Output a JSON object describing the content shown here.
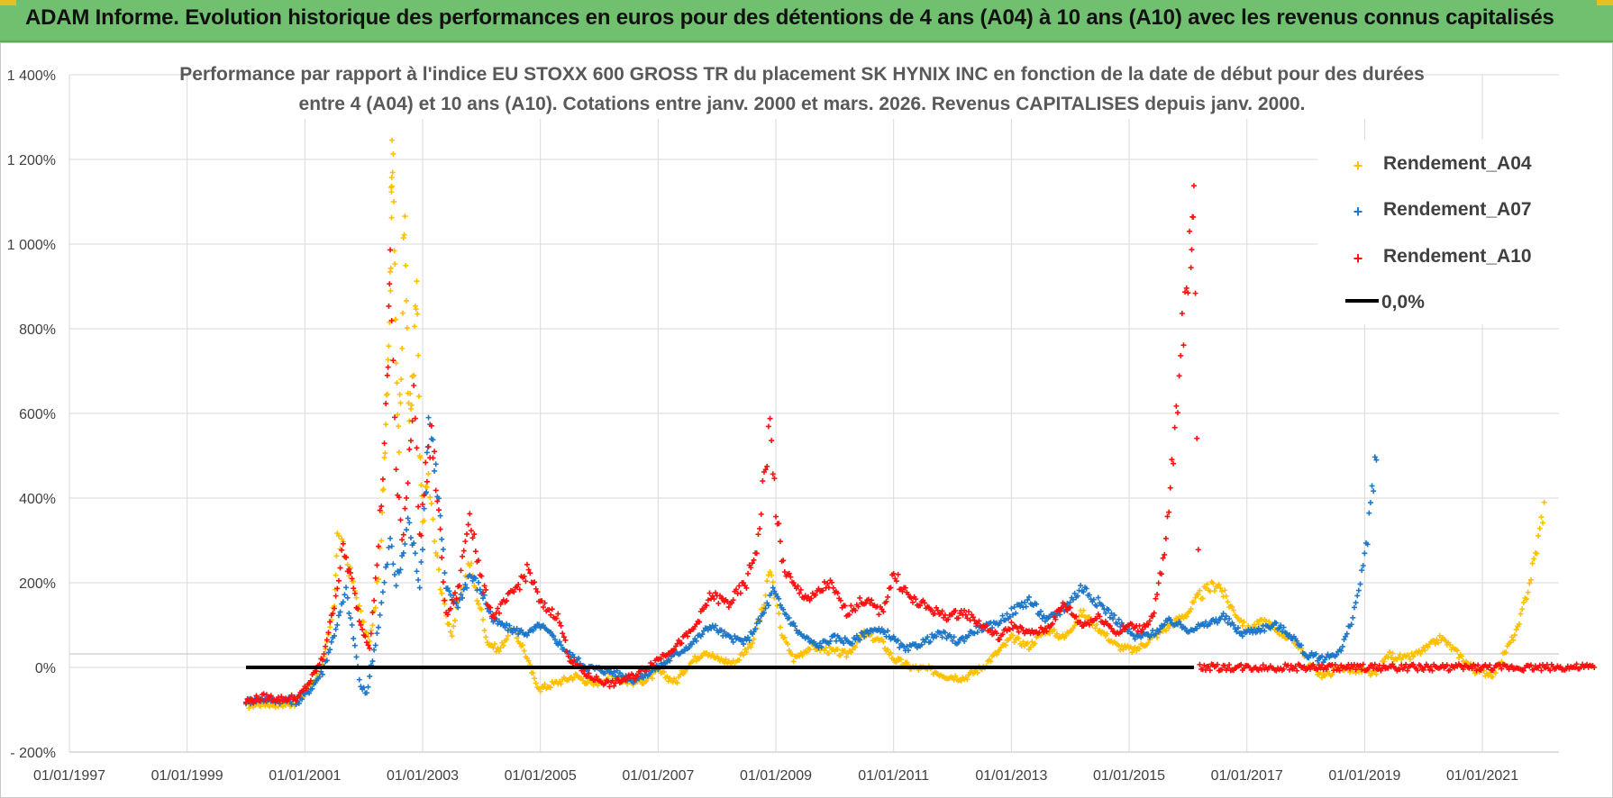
{
  "header": {
    "title": "ADAM Informe. Evolution historique des performances en euros pour des détentions de 4 ans (A04) à 10 ans (A10) avec les revenus connus capitalisés"
  },
  "chart_data": {
    "type": "scatter",
    "title_line1": "Performance par rapport à l'indice EU STOXX 600 GROSS TR  du placement SK HYNIX INC en fonction de la date de début pour des durées",
    "title_line2": "entre 4 (A04) et 10 ans (A10). Cotations entre janv. 2000 et mars. 2026. Revenus CAPITALISES depuis janv. 2000.",
    "xlim": [
      1997.0,
      2023.0
    ],
    "ylim": [
      -200,
      1400
    ],
    "x_ticks": [
      "01/01/1997",
      "01/01/1999",
      "01/01/2001",
      "01/01/2003",
      "01/01/2005",
      "01/01/2007",
      "01/01/2009",
      "01/01/2011",
      "01/01/2013",
      "01/01/2015",
      "01/01/2017",
      "01/01/2019",
      "01/01/2021"
    ],
    "y_ticks": [
      "- 200%",
      "0%",
      "200%",
      "400%",
      "600%",
      "800%",
      "1 000%",
      "1 200%",
      "1 400%"
    ],
    "grid": true,
    "legend_position": "top-right",
    "series": [
      {
        "name": "Rendement_A04",
        "color": "#ffc000",
        "points": [
          [
            2000.0,
            -90
          ],
          [
            2000.3,
            -85
          ],
          [
            2000.6,
            -88
          ],
          [
            2000.9,
            -82
          ],
          [
            2001.1,
            -40
          ],
          [
            2001.3,
            0
          ],
          [
            2001.5,
            150
          ],
          [
            2001.55,
            310
          ],
          [
            2001.7,
            260
          ],
          [
            2001.85,
            180
          ],
          [
            2002.0,
            100
          ],
          [
            2002.1,
            60
          ],
          [
            2002.2,
            150
          ],
          [
            2002.3,
            300
          ],
          [
            2002.35,
            500
          ],
          [
            2002.4,
            700
          ],
          [
            2002.45,
            900
          ],
          [
            2002.47,
            1110
          ],
          [
            2002.48,
            1260
          ],
          [
            2002.52,
            1000
          ],
          [
            2002.55,
            700
          ],
          [
            2002.6,
            550
          ],
          [
            2002.65,
            800
          ],
          [
            2002.7,
            1085
          ],
          [
            2002.75,
            650
          ],
          [
            2002.8,
            600
          ],
          [
            2002.85,
            700
          ],
          [
            2002.9,
            920
          ],
          [
            2002.95,
            500
          ],
          [
            2003.0,
            350
          ],
          [
            2003.1,
            450
          ],
          [
            2003.2,
            300
          ],
          [
            2003.3,
            200
          ],
          [
            2003.4,
            120
          ],
          [
            2003.5,
            80
          ],
          [
            2003.6,
            150
          ],
          [
            2003.7,
            200
          ],
          [
            2003.8,
            250
          ],
          [
            2003.9,
            180
          ],
          [
            2004.0,
            130
          ],
          [
            2004.1,
            60
          ],
          [
            2004.3,
            40
          ],
          [
            2004.5,
            90
          ],
          [
            2004.7,
            50
          ],
          [
            2004.9,
            -30
          ],
          [
            2005.0,
            -50
          ],
          [
            2005.3,
            -35
          ],
          [
            2005.6,
            -20
          ],
          [
            2005.9,
            -40
          ],
          [
            2006.2,
            -20
          ],
          [
            2006.5,
            -35
          ],
          [
            2006.8,
            -30
          ],
          [
            2007.0,
            -10
          ],
          [
            2007.3,
            -35
          ],
          [
            2007.5,
            5
          ],
          [
            2007.8,
            40
          ],
          [
            2008.0,
            20
          ],
          [
            2008.3,
            10
          ],
          [
            2008.6,
            60
          ],
          [
            2008.8,
            150
          ],
          [
            2008.9,
            230
          ],
          [
            2009.0,
            160
          ],
          [
            2009.1,
            80
          ],
          [
            2009.3,
            20
          ],
          [
            2009.6,
            50
          ],
          [
            2009.9,
            40
          ],
          [
            2010.2,
            30
          ],
          [
            2010.5,
            80
          ],
          [
            2010.8,
            60
          ],
          [
            2011.0,
            20
          ],
          [
            2011.3,
            0
          ],
          [
            2011.6,
            -5
          ],
          [
            2011.9,
            -20
          ],
          [
            2012.2,
            -25
          ],
          [
            2012.5,
            0
          ],
          [
            2012.8,
            40
          ],
          [
            2013.0,
            70
          ],
          [
            2013.3,
            50
          ],
          [
            2013.6,
            90
          ],
          [
            2013.9,
            70
          ],
          [
            2014.2,
            130
          ],
          [
            2014.5,
            90
          ],
          [
            2014.8,
            50
          ],
          [
            2015.1,
            40
          ],
          [
            2015.4,
            70
          ],
          [
            2015.7,
            100
          ],
          [
            2016.0,
            130
          ],
          [
            2016.2,
            170
          ],
          [
            2016.5,
            200
          ],
          [
            2016.7,
            150
          ],
          [
            2017.0,
            90
          ],
          [
            2017.3,
            110
          ],
          [
            2017.6,
            80
          ],
          [
            2017.9,
            50
          ],
          [
            2018.1,
            0
          ],
          [
            2018.3,
            -20
          ],
          [
            2018.6,
            0
          ],
          [
            2018.9,
            -10
          ],
          [
            2019.2,
            -15
          ],
          [
            2019.4,
            30
          ],
          [
            2019.7,
            20
          ],
          [
            2020.0,
            40
          ],
          [
            2020.3,
            70
          ],
          [
            2020.6,
            30
          ],
          [
            2020.9,
            -10
          ],
          [
            2021.2,
            -15
          ],
          [
            2021.4,
            40
          ],
          [
            2021.6,
            90
          ],
          [
            2021.8,
            200
          ],
          [
            2021.95,
            300
          ],
          [
            2022.05,
            390
          ]
        ]
      },
      {
        "name": "Rendement_A07",
        "color": "#1f77c8",
        "points": [
          [
            2000.0,
            -80
          ],
          [
            2000.3,
            -75
          ],
          [
            2000.6,
            -78
          ],
          [
            2000.9,
            -80
          ],
          [
            2001.1,
            -50
          ],
          [
            2001.3,
            -10
          ],
          [
            2001.5,
            80
          ],
          [
            2001.7,
            180
          ],
          [
            2001.85,
            50
          ],
          [
            2001.95,
            -50
          ],
          [
            2002.05,
            -60
          ],
          [
            2002.15,
            20
          ],
          [
            2002.25,
            100
          ],
          [
            2002.35,
            200
          ],
          [
            2002.45,
            300
          ],
          [
            2002.55,
            200
          ],
          [
            2002.65,
            250
          ],
          [
            2002.75,
            350
          ],
          [
            2002.85,
            280
          ],
          [
            2002.95,
            200
          ],
          [
            2003.05,
            400
          ],
          [
            2003.1,
            600
          ],
          [
            2003.2,
            500
          ],
          [
            2003.3,
            350
          ],
          [
            2003.4,
            180
          ],
          [
            2003.6,
            150
          ],
          [
            2003.8,
            220
          ],
          [
            2004.0,
            180
          ],
          [
            2004.2,
            110
          ],
          [
            2004.5,
            90
          ],
          [
            2004.8,
            80
          ],
          [
            2005.0,
            100
          ],
          [
            2005.3,
            60
          ],
          [
            2005.5,
            30
          ],
          [
            2005.8,
            0
          ],
          [
            2006.2,
            -10
          ],
          [
            2006.6,
            -30
          ],
          [
            2007.0,
            0
          ],
          [
            2007.3,
            30
          ],
          [
            2007.6,
            60
          ],
          [
            2007.9,
            100
          ],
          [
            2008.2,
            70
          ],
          [
            2008.5,
            60
          ],
          [
            2008.8,
            130
          ],
          [
            2008.95,
            180
          ],
          [
            2009.1,
            140
          ],
          [
            2009.4,
            80
          ],
          [
            2009.7,
            50
          ],
          [
            2010.0,
            70
          ],
          [
            2010.3,
            60
          ],
          [
            2010.6,
            90
          ],
          [
            2010.9,
            80
          ],
          [
            2011.2,
            40
          ],
          [
            2011.5,
            60
          ],
          [
            2011.8,
            80
          ],
          [
            2012.1,
            60
          ],
          [
            2012.4,
            90
          ],
          [
            2012.7,
            100
          ],
          [
            2013.0,
            130
          ],
          [
            2013.3,
            160
          ],
          [
            2013.6,
            110
          ],
          [
            2013.9,
            140
          ],
          [
            2014.2,
            190
          ],
          [
            2014.5,
            150
          ],
          [
            2014.8,
            110
          ],
          [
            2015.1,
            70
          ],
          [
            2015.4,
            80
          ],
          [
            2015.7,
            110
          ],
          [
            2016.0,
            90
          ],
          [
            2016.3,
            100
          ],
          [
            2016.6,
            120
          ],
          [
            2016.9,
            80
          ],
          [
            2017.2,
            90
          ],
          [
            2017.5,
            100
          ],
          [
            2017.8,
            70
          ],
          [
            2018.0,
            30
          ],
          [
            2018.3,
            20
          ],
          [
            2018.6,
            40
          ],
          [
            2018.8,
            120
          ],
          [
            2019.0,
            250
          ],
          [
            2019.1,
            380
          ],
          [
            2019.2,
            490
          ]
        ]
      },
      {
        "name": "Rendement_A10",
        "color": "#ff1010",
        "points": [
          [
            2000.0,
            -80
          ],
          [
            2000.3,
            -70
          ],
          [
            2000.6,
            -75
          ],
          [
            2000.9,
            -70
          ],
          [
            2001.1,
            -30
          ],
          [
            2001.3,
            20
          ],
          [
            2001.5,
            150
          ],
          [
            2001.65,
            280
          ],
          [
            2001.8,
            200
          ],
          [
            2001.95,
            100
          ],
          [
            2002.1,
            50
          ],
          [
            2002.2,
            200
          ],
          [
            2002.3,
            400
          ],
          [
            2002.4,
            650
          ],
          [
            2002.45,
            990
          ],
          [
            2002.55,
            450
          ],
          [
            2002.65,
            300
          ],
          [
            2002.75,
            450
          ],
          [
            2002.85,
            680
          ],
          [
            2002.95,
            300
          ],
          [
            2003.05,
            450
          ],
          [
            2003.15,
            550
          ],
          [
            2003.25,
            400
          ],
          [
            2003.4,
            120
          ],
          [
            2003.6,
            180
          ],
          [
            2003.8,
            370
          ],
          [
            2004.0,
            200
          ],
          [
            2004.2,
            120
          ],
          [
            2004.5,
            170
          ],
          [
            2004.8,
            230
          ],
          [
            2005.0,
            150
          ],
          [
            2005.3,
            120
          ],
          [
            2005.5,
            20
          ],
          [
            2005.8,
            -20
          ],
          [
            2006.2,
            -40
          ],
          [
            2006.6,
            -20
          ],
          [
            2007.0,
            20
          ],
          [
            2007.3,
            50
          ],
          [
            2007.6,
            90
          ],
          [
            2007.9,
            170
          ],
          [
            2008.2,
            150
          ],
          [
            2008.5,
            200
          ],
          [
            2008.7,
            300
          ],
          [
            2008.8,
            450
          ],
          [
            2008.9,
            570
          ],
          [
            2009.0,
            380
          ],
          [
            2009.1,
            250
          ],
          [
            2009.3,
            190
          ],
          [
            2009.6,
            160
          ],
          [
            2009.9,
            200
          ],
          [
            2010.2,
            130
          ],
          [
            2010.5,
            160
          ],
          [
            2010.8,
            130
          ],
          [
            2011.0,
            220
          ],
          [
            2011.3,
            160
          ],
          [
            2011.6,
            140
          ],
          [
            2011.9,
            120
          ],
          [
            2012.2,
            130
          ],
          [
            2012.5,
            100
          ],
          [
            2012.8,
            70
          ],
          [
            2013.0,
            100
          ],
          [
            2013.3,
            80
          ],
          [
            2013.6,
            90
          ],
          [
            2013.9,
            150
          ],
          [
            2014.2,
            100
          ],
          [
            2014.5,
            120
          ],
          [
            2014.8,
            80
          ],
          [
            2015.0,
            100
          ],
          [
            2015.2,
            90
          ],
          [
            2015.4,
            120
          ],
          [
            2015.6,
            260
          ],
          [
            2015.75,
            500
          ],
          [
            2015.85,
            700
          ],
          [
            2015.95,
            850
          ],
          [
            2016.05,
            1000
          ],
          [
            2016.1,
            1160
          ],
          [
            2016.2,
            0
          ],
          [
            2016.8,
            0
          ],
          [
            2017.4,
            0
          ],
          [
            2018.0,
            0
          ],
          [
            2018.6,
            0
          ],
          [
            2019.2,
            0
          ],
          [
            2019.8,
            0
          ],
          [
            2020.4,
            0
          ],
          [
            2021.0,
            0
          ],
          [
            2021.6,
            0
          ],
          [
            2022.2,
            0
          ],
          [
            2022.9,
            0
          ]
        ]
      },
      {
        "name": "0,0%",
        "color": "#000000",
        "points": [
          [
            2000.0,
            0
          ],
          [
            2016.1,
            0
          ]
        ]
      }
    ]
  }
}
